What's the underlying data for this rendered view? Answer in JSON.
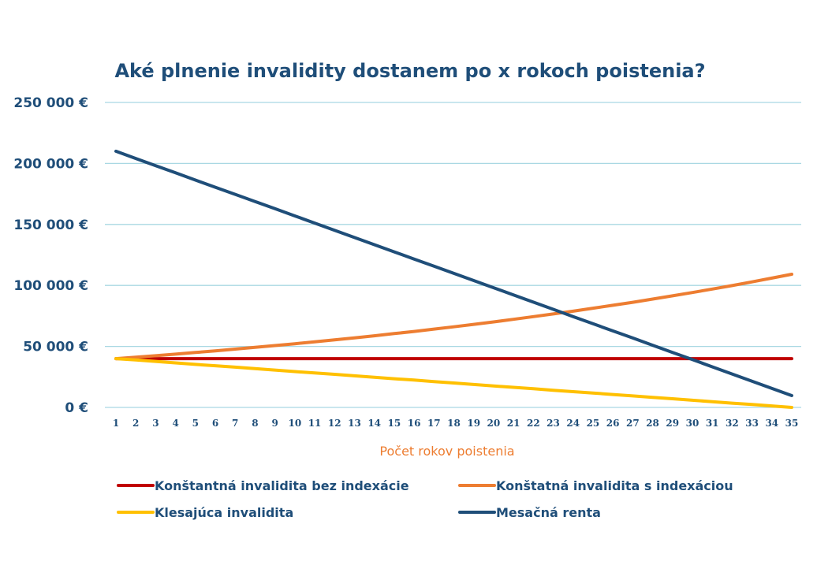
{
  "chart_data": {
    "type": "line",
    "title": "Aké plnenie invalidity dostanem po x rokoch poistenia?",
    "xlabel": "Počet rokov poistenia",
    "ylabel": "",
    "ylim": [
      0,
      250000
    ],
    "yticks": [
      "0 €",
      "50 000 €",
      "100 000 €",
      "150 000 €",
      "200 000 €",
      "250 000 €"
    ],
    "ytick_values": [
      0,
      50000,
      100000,
      150000,
      200000,
      250000
    ],
    "grid": true,
    "legend_position": "bottom",
    "x": [
      1,
      2,
      3,
      4,
      5,
      6,
      7,
      8,
      9,
      10,
      11,
      12,
      13,
      14,
      15,
      16,
      17,
      18,
      19,
      20,
      21,
      22,
      23,
      24,
      25,
      26,
      27,
      28,
      29,
      30,
      31,
      32,
      33,
      34,
      35
    ],
    "x_labels": [
      "1",
      "2",
      "3",
      "4",
      "5",
      "6",
      "7",
      "8",
      "9",
      "10",
      "11",
      "12",
      "13",
      "14",
      "15",
      "16",
      "17",
      "18",
      "19",
      "20",
      "21",
      "22",
      "23",
      "24",
      "25",
      "26",
      "27",
      "28",
      "29",
      "30",
      "31",
      "32",
      "33",
      "34",
      "35"
    ],
    "series": [
      {
        "name": "Konštantná invalidita bez indexácie",
        "color": "#c00000",
        "values": [
          40000,
          40000,
          40000,
          40000,
          40000,
          40000,
          40000,
          40000,
          40000,
          40000,
          40000,
          40000,
          40000,
          40000,
          40000,
          40000,
          40000,
          40000,
          40000,
          40000,
          40000,
          40000,
          40000,
          40000,
          40000,
          40000,
          40000,
          40000,
          40000,
          40000,
          40000,
          40000,
          40000,
          40000,
          40000
        ]
      },
      {
        "name": "Konštatná invalidita s indexáciou",
        "color": "#ed7d31",
        "values": [
          40000,
          41200,
          42400,
          43700,
          45000,
          46400,
          47800,
          49200,
          50700,
          52200,
          53800,
          55400,
          57000,
          58700,
          60500,
          62300,
          64200,
          66100,
          68100,
          70100,
          72200,
          74400,
          76600,
          78900,
          81300,
          83700,
          86200,
          88800,
          91500,
          94200,
          97000,
          99900,
          102900,
          106000,
          109200
        ]
      },
      {
        "name": "Klesajúca invalidita",
        "color": "#ffc000",
        "values": [
          40000,
          38900,
          37700,
          36500,
          35300,
          34200,
          33000,
          31800,
          30600,
          29400,
          28200,
          27100,
          25900,
          24700,
          23500,
          22400,
          21200,
          20000,
          18800,
          17600,
          16500,
          15300,
          14100,
          12900,
          11800,
          10600,
          9400,
          8200,
          7100,
          5900,
          4700,
          3500,
          2400,
          1200,
          0
        ]
      },
      {
        "name": "Mesačná renta",
        "color": "#1f4e79",
        "values": [
          210000,
          204100,
          198200,
          192300,
          186400,
          180500,
          174700,
          168800,
          162900,
          157000,
          151100,
          145200,
          139300,
          133400,
          127500,
          121600,
          115800,
          109900,
          104000,
          98100,
          92200,
          86300,
          80400,
          74500,
          68600,
          62700,
          56900,
          51000,
          45100,
          39200,
          33300,
          27400,
          21500,
          15600,
          9700
        ]
      }
    ]
  }
}
